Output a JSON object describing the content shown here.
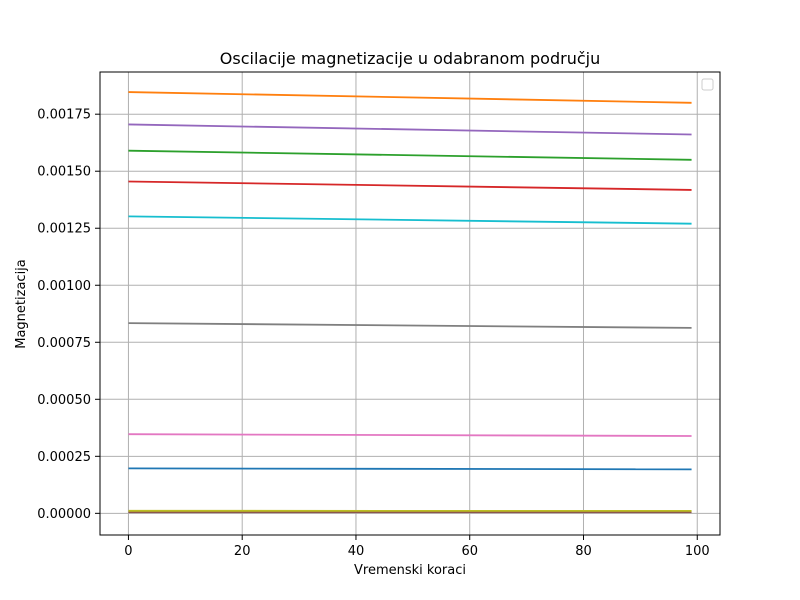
{
  "chart_data": {
    "type": "line",
    "title": "Oscilacije magnetizacije u odabranom području",
    "xlabel": "Vremenski koraci",
    "ylabel": "Magnetizacija",
    "xlim": [
      -5,
      104
    ],
    "ylim": [
      -9.5e-05,
      0.001935
    ],
    "xticks": [
      0,
      20,
      40,
      60,
      80,
      100
    ],
    "yticks": [
      0.0,
      0.00025,
      0.0005,
      0.00075,
      0.001,
      0.00125,
      0.0015,
      0.00175
    ],
    "xtick_labels": [
      "0",
      "20",
      "40",
      "60",
      "80",
      "100"
    ],
    "ytick_labels": [
      "0.00000",
      "0.00025",
      "0.00050",
      "0.00075",
      "0.00100",
      "0.00125",
      "0.00150",
      "0.00175"
    ],
    "grid": true,
    "legend": "top-right, empty",
    "x": [
      0,
      99
    ],
    "series": [
      {
        "color": "#1f77b4",
        "values": [
          0.000197,
          0.000193
        ]
      },
      {
        "color": "#ff7f0e",
        "values": [
          0.001847,
          0.0018
        ]
      },
      {
        "color": "#2ca02c",
        "values": [
          0.00159,
          0.00155
        ]
      },
      {
        "color": "#d62728",
        "values": [
          0.001455,
          0.001418
        ]
      },
      {
        "color": "#9467bd",
        "values": [
          0.001705,
          0.001661
        ]
      },
      {
        "color": "#8c564b",
        "values": [
          5e-06,
          4.8e-06
        ]
      },
      {
        "color": "#e377c2",
        "values": [
          0.000347,
          0.000339
        ]
      },
      {
        "color": "#7f7f7f",
        "values": [
          0.000834,
          0.000813
        ]
      },
      {
        "color": "#bcbd22",
        "values": [
          1.1e-05,
          1.07e-05
        ]
      },
      {
        "color": "#17becf",
        "values": [
          0.001302,
          0.00127
        ]
      }
    ]
  }
}
